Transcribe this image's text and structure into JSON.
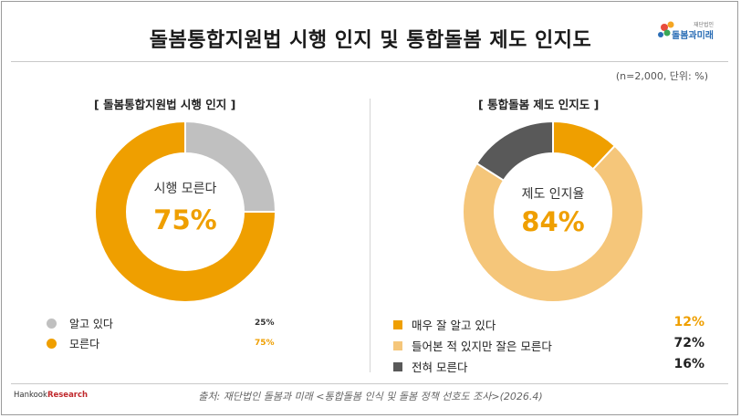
{
  "title": "돌봄통합지원법 시행 인지 및 통합돌봄 제도 인지도",
  "note": "(n=2,000, 단위: %)",
  "logo": {
    "text": "돌봄과미래",
    "sub": "재단법인"
  },
  "left": {
    "section_title": "[ 돌봄통합지원법 시행 인지 ]",
    "center_label": "시행 모른다",
    "center_value": "75%",
    "legend": [
      {
        "label": "알고 있다",
        "value_text": "25%"
      },
      {
        "label": "모른다",
        "value_text": "75%"
      }
    ]
  },
  "right": {
    "section_title": "[ 통합돌봄 제도 인지도 ]",
    "center_label": "제도 인지율",
    "center_value": "84%",
    "legend": [
      {
        "label": "매우 잘 알고 있다",
        "value_text": "12%"
      },
      {
        "label": "들어본 적 있지만 잘은 모른다",
        "value_text": "72%"
      },
      {
        "label": "전혀 모른다",
        "value_text": "16%"
      }
    ]
  },
  "brand": {
    "name": "Hankook",
    "accent": "Research"
  },
  "source": "출처: 재단법인 돌봄과 미래 <통합돌봄 인식 및 돌봄 정책 선호도 조사>(2026.4)",
  "chart_data": [
    {
      "type": "pie",
      "title": "[ 돌봄통합지원법 시행 인지 ]",
      "categories": [
        "알고 있다",
        "모른다"
      ],
      "values": [
        25,
        75
      ],
      "colors": [
        "#c0c0c0",
        "#ef9f00"
      ],
      "center_label": "시행 모른다",
      "center_value": "75%"
    },
    {
      "type": "pie",
      "title": "[ 통합돌봄 제도 인지도 ]",
      "categories": [
        "매우 잘 알고 있다",
        "들어본 적 있지만 잘은 모른다",
        "전혀 모른다"
      ],
      "values": [
        12,
        72,
        16
      ],
      "colors": [
        "#ef9f00",
        "#f5c67a",
        "#595959"
      ],
      "center_label": "제도 인지율",
      "center_value": "84%"
    }
  ],
  "colors": {
    "accent": "#ef9f00",
    "text": "#222222"
  }
}
